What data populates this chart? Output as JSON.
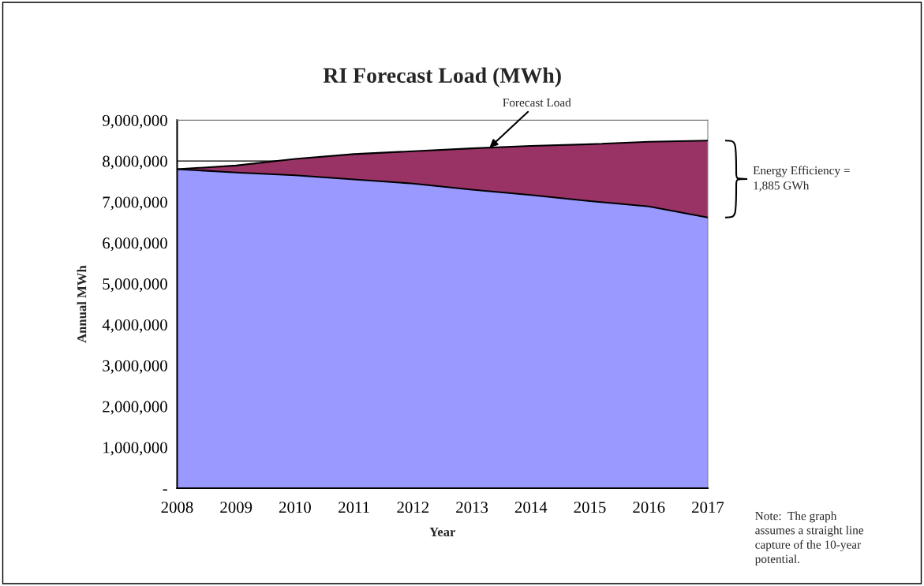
{
  "chart_data": {
    "type": "area",
    "stacked": true,
    "title": "RI Forecast Load (MWh)",
    "xlabel": "Year",
    "ylabel": "Annual MWh",
    "x": [
      2008,
      2009,
      2010,
      2011,
      2012,
      2013,
      2014,
      2015,
      2016,
      2017
    ],
    "series": [
      {
        "color": "#9999ff",
        "values": [
          7800000,
          7720000,
          7650000,
          7550000,
          7450000,
          7300000,
          7170000,
          7020000,
          6890000,
          6620000
        ]
      },
      {
        "color": "#993366",
        "values": [
          0,
          170000,
          400000,
          620000,
          790000,
          1010000,
          1200000,
          1390000,
          1580000,
          1880000
        ]
      }
    ],
    "xlim": [
      2008,
      2017
    ],
    "xticks": [
      2008,
      2009,
      2010,
      2011,
      2012,
      2013,
      2014,
      2015,
      2016,
      2017
    ],
    "ylim": [
      0,
      9000000
    ],
    "yticks": [
      {
        "value": 0,
        "label": "-"
      },
      {
        "value": 1000000,
        "label": "1,000,000"
      },
      {
        "value": 2000000,
        "label": "2,000,000"
      },
      {
        "value": 3000000,
        "label": "3,000,000"
      },
      {
        "value": 4000000,
        "label": "4,000,000"
      },
      {
        "value": 5000000,
        "label": "5,000,000"
      },
      {
        "value": 6000000,
        "label": "6,000,000"
      },
      {
        "value": 7000000,
        "label": "7,000,000"
      },
      {
        "value": 8000000,
        "label": "8,000,000"
      },
      {
        "value": 9000000,
        "label": "9,000,000"
      }
    ],
    "grid": "y",
    "legend": false,
    "annotations": [
      {
        "text": "Forecast Load",
        "x": 2013.3,
        "y": 8330000
      },
      "Energy Efficiency =\n1,885 GWh",
      "Note:  The graph\nassumes a straight line\ncapture of the 10-year\npotential."
    ]
  }
}
